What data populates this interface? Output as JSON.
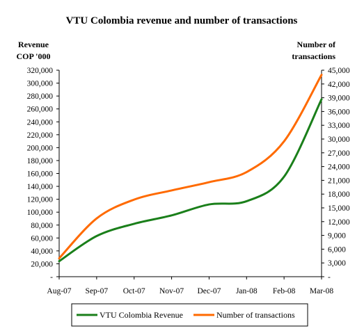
{
  "chart_data": {
    "type": "line",
    "title": "VTU Colombia revenue and number of transactions",
    "ylabel_left": [
      "Revenue",
      "COP '000"
    ],
    "ylabel_right": [
      "Number of",
      "transactions"
    ],
    "categories": [
      "Aug-07",
      "Sep-07",
      "Oct-07",
      "Nov-07",
      "Dec-07",
      "Jan-08",
      "Feb-08",
      "Mar-08"
    ],
    "y_left": {
      "min": 0,
      "max": 320000,
      "ticks": [
        0,
        20000,
        40000,
        60000,
        80000,
        100000,
        120000,
        140000,
        160000,
        180000,
        200000,
        220000,
        240000,
        260000,
        280000,
        300000,
        320000
      ],
      "tick_labels": [
        "-",
        "20,000",
        "40,000",
        "60,000",
        "80,000",
        "100,000",
        "120,000",
        "140,000",
        "160,000",
        "180,000",
        "200,000",
        "220,000",
        "240,000",
        "260,000",
        "280,000",
        "300,000",
        "320,000"
      ]
    },
    "y_right": {
      "min": 0,
      "max": 45000,
      "ticks": [
        0,
        3000,
        6000,
        9000,
        12000,
        15000,
        18000,
        21000,
        24000,
        27000,
        30000,
        33000,
        36000,
        39000,
        42000,
        45000
      ],
      "tick_labels": [
        "-",
        "3,000",
        "6,000",
        "9,000",
        "12,000",
        "15,000",
        "18,000",
        "21,000",
        "24,000",
        "27,000",
        "30,000",
        "33,000",
        "36,000",
        "39,000",
        "42,000",
        "45,000"
      ]
    },
    "grid": false,
    "legend_position": "bottom",
    "series": [
      {
        "name": "VTU Colombia Revenue",
        "axis": "left",
        "color": "#1a7f1a",
        "values": [
          24000,
          63000,
          82000,
          95000,
          112000,
          117000,
          155000,
          275000
        ]
      },
      {
        "name": "Number of transactions",
        "axis": "right",
        "color": "#ff6a00",
        "values": [
          4000,
          12700,
          16800,
          18800,
          20600,
          22800,
          29500,
          44000
        ]
      }
    ]
  }
}
